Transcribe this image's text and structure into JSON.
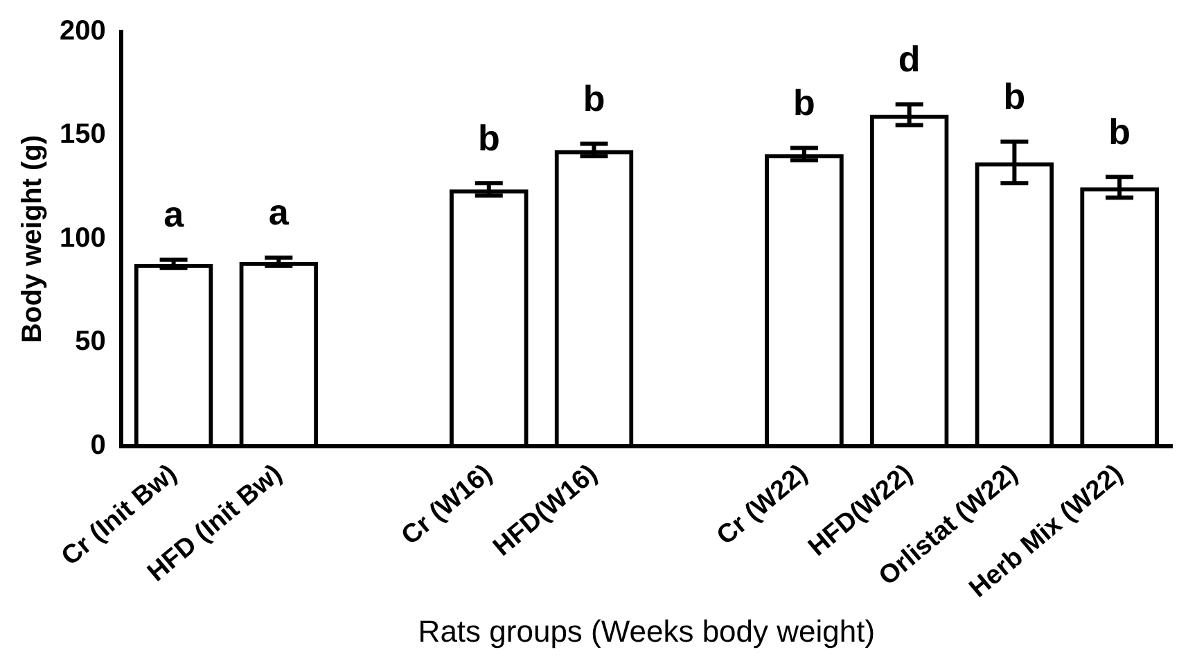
{
  "chart_data": {
    "type": "bar",
    "xlabel": "Rats groups (Weeks body weight)",
    "ylabel": "Body weight (g)",
    "categories": [
      "Cr (Init Bw)",
      "HFD (Init Bw)",
      null,
      "Cr (W16)",
      "HFD(W16)",
      null,
      "Cr (W22)",
      "HFD(W22)",
      "Orlistat (W22)",
      "Herb Mix (W22)"
    ],
    "values": [
      88,
      89,
      null,
      124,
      143,
      null,
      141,
      160,
      137,
      125
    ],
    "errors": [
      2,
      2,
      null,
      3,
      3,
      null,
      3,
      5,
      10,
      5
    ],
    "colors": [
      "#000000",
      "#000000",
      "#000000",
      "#000000",
      "#000000",
      "#000000",
      "#000000",
      "#000000",
      "#000000",
      "#000000"
    ],
    "ylim": [
      0,
      200
    ],
    "yticks": [
      0,
      50,
      100,
      150,
      200
    ],
    "grid": false,
    "legend": false,
    "annotations": [
      {
        "text": "a",
        "x": "Cr (Init Bw)",
        "y": 88
      },
      {
        "text": "a",
        "x": "HFD (Init Bw)",
        "y": 89
      },
      {
        "text": "b",
        "x": "Cr (W16)",
        "y": 124
      },
      {
        "text": "b",
        "x": "HFD(W16)",
        "y": 143
      },
      {
        "text": "b",
        "x": "Cr (W22)",
        "y": 141
      },
      {
        "text": "d",
        "x": "HFD(W22)",
        "y": 160
      },
      {
        "text": "b",
        "x": "Orlistat (W22)",
        "y": 137
      },
      {
        "text": "b",
        "x": "Herb Mix (W22)",
        "y": 125
      }
    ]
  }
}
